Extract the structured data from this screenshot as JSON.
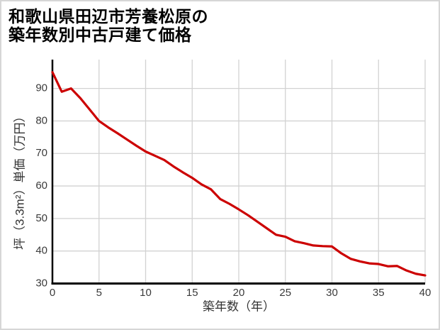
{
  "title": {
    "line1": "和歌山県田辺市芳養松原の",
    "line2": "築年数別中古戸建て価格"
  },
  "chart_data": {
    "type": "line",
    "title": "和歌山県田辺市芳養松原の築年数別中古戸建て価格",
    "xlabel": "築年数（年）",
    "ylabel": "坪（3.3m²）単価（万円）",
    "x": [
      0,
      1,
      2,
      3,
      4,
      5,
      6,
      7,
      8,
      9,
      10,
      11,
      12,
      13,
      14,
      15,
      16,
      17,
      18,
      19,
      20,
      21,
      22,
      23,
      24,
      25,
      26,
      27,
      28,
      29,
      30,
      31,
      32,
      33,
      34,
      35,
      36,
      37,
      38,
      39,
      40
    ],
    "values": [
      95,
      89,
      90,
      87,
      83.5,
      80,
      78,
      76.2,
      74.3,
      72.4,
      70.6,
      69.3,
      68,
      66,
      64.2,
      62.5,
      60.5,
      59,
      56,
      54.5,
      52.8,
      51,
      49,
      47,
      45,
      44.4,
      43,
      42.4,
      41.7,
      41.5,
      41.4,
      39.3,
      37.6,
      36.8,
      36.2,
      36,
      35.3,
      35.4,
      34,
      33,
      32.5
    ],
    "xlim": [
      0,
      40
    ],
    "ylim": [
      30,
      98
    ],
    "xticks": [
      0,
      5,
      10,
      15,
      20,
      25,
      30,
      35,
      40
    ],
    "yticks": [
      30,
      40,
      50,
      60,
      70,
      80,
      90
    ],
    "grid": true,
    "legend": false,
    "colors": {
      "line": "#cc0000",
      "grid": "#d2d2d2",
      "axis": "#000000",
      "tick_label": "#3a3a3a",
      "title": "#000000",
      "background": "#ffffff",
      "border": "#d6d6d6"
    }
  }
}
